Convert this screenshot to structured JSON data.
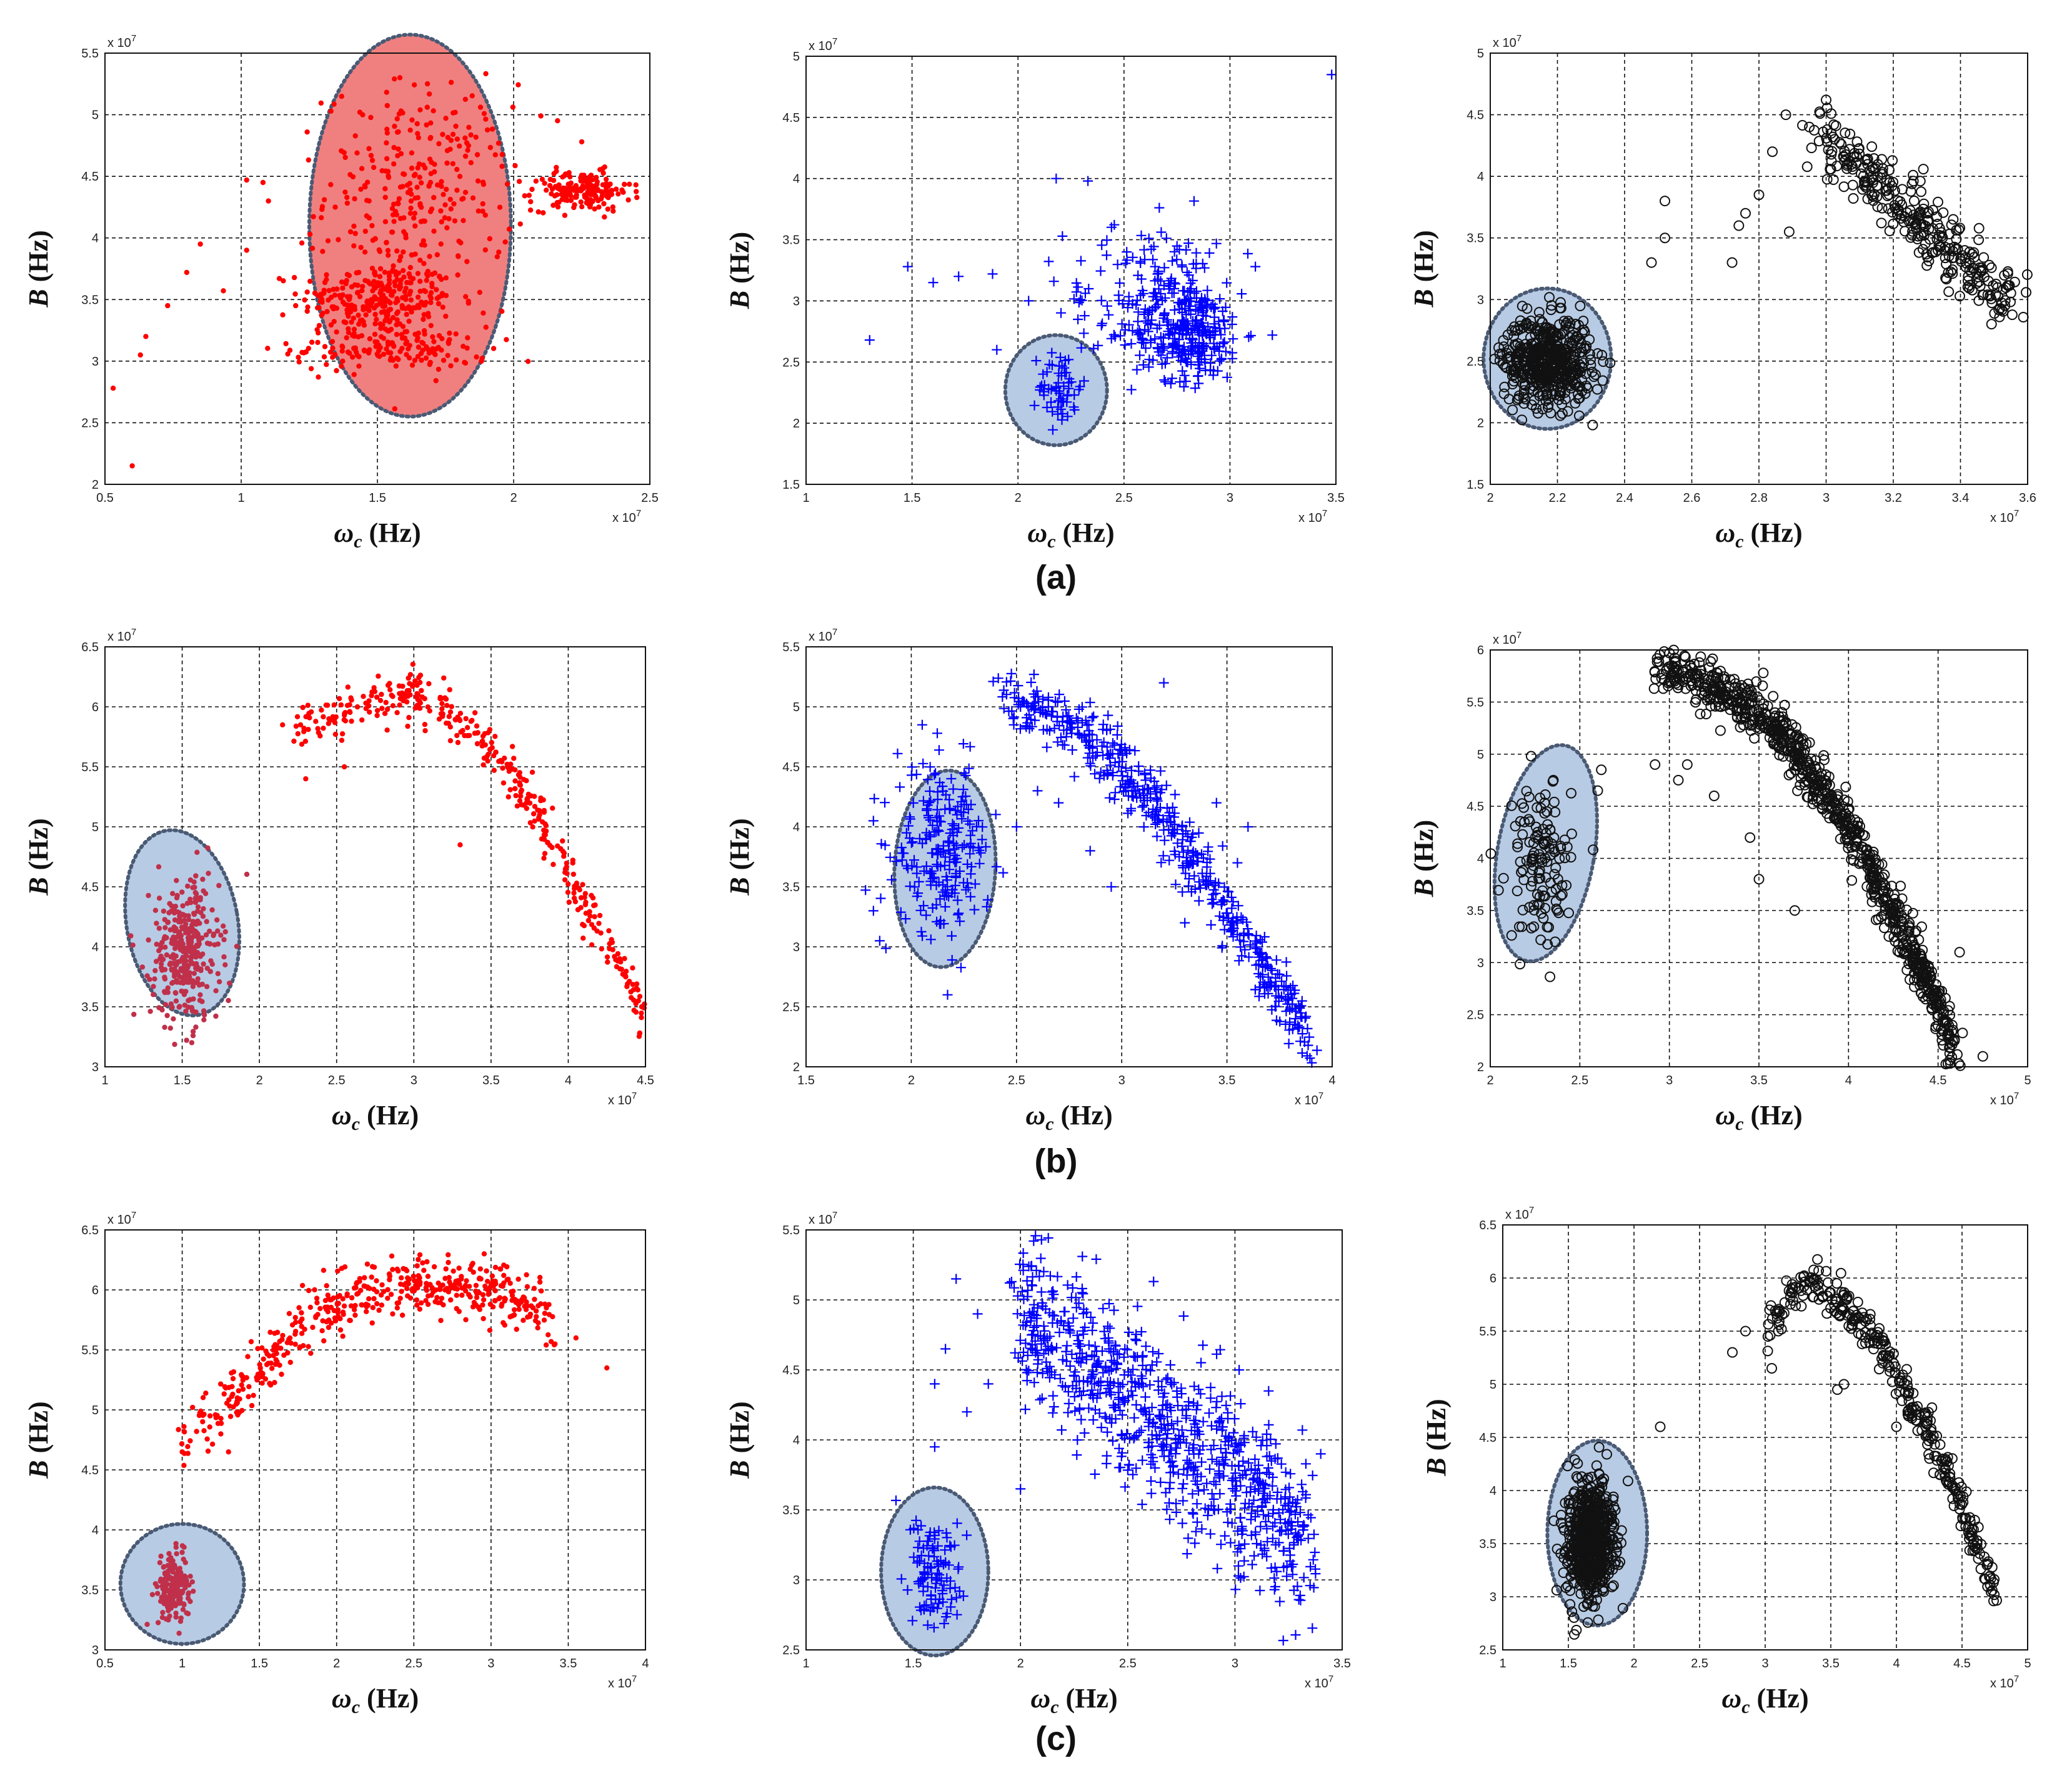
{
  "figure": {
    "row_labels": [
      "(a)",
      "(b)",
      "(c)"
    ],
    "x_multiplier": "x 10",
    "y_multiplier": "x 10",
    "exponent": "7",
    "x_axis_label": "ω",
    "x_axis_sub": "c",
    "x_axis_unit": " (Hz)",
    "y_axis_label": "B",
    "y_axis_unit": " (Hz)",
    "colors": {
      "red": "#ff0000",
      "blue": "#0000ff",
      "black": "#111111",
      "highlight_red": "#f08080",
      "highlight_blue": "#b8cbe4",
      "ellipse_border": "#4a5a74"
    }
  },
  "chart_data": [
    {
      "id": "a1",
      "type": "scatter",
      "marker": "dot",
      "color": "#ff0000",
      "xlim": [
        0.5,
        2.5
      ],
      "ylim": [
        2,
        5.5
      ],
      "xticks": [
        "0.5",
        "1",
        "1.5",
        "2",
        "2.5"
      ],
      "yticks": [
        "2",
        "2.5",
        "3",
        "3.5",
        "4",
        "4.5",
        "5",
        "5.5"
      ],
      "xlabel": "ωc (Hz)",
      "ylabel": "B (Hz)",
      "highlight": {
        "cx": 1.62,
        "cy": 4.1,
        "rx": 0.37,
        "ry": 1.55,
        "color": "#f08080"
      },
      "clusters": [
        {
          "cx": 1.5,
          "cy": 3.5,
          "sx": 0.14,
          "sy": 0.15,
          "n": 260
        },
        {
          "cx": 1.55,
          "cy": 3.1,
          "sx": 0.18,
          "sy": 0.09,
          "n": 150
        },
        {
          "cx": 1.65,
          "cy": 4.35,
          "sx": 0.17,
          "sy": 0.45,
          "n": 300
        },
        {
          "cx": 2.25,
          "cy": 4.38,
          "sx": 0.09,
          "sy": 0.08,
          "n": 170
        }
      ],
      "points": [
        [
          0.53,
          2.78
        ],
        [
          0.6,
          2.15
        ],
        [
          0.63,
          3.05
        ],
        [
          0.65,
          3.2
        ],
        [
          0.73,
          3.45
        ],
        [
          0.8,
          3.72
        ],
        [
          0.85,
          3.95
        ],
        [
          1.02,
          4.47
        ],
        [
          1.02,
          3.9
        ],
        [
          1.08,
          4.45
        ],
        [
          1.1,
          4.3
        ],
        [
          1.2,
          3.45
        ],
        [
          2.1,
          4.99
        ],
        [
          2.25,
          4.78
        ]
      ]
    },
    {
      "id": "a2",
      "type": "scatter",
      "marker": "plus",
      "color": "#0000ff",
      "xlim": [
        1,
        3.5
      ],
      "ylim": [
        1.5,
        5
      ],
      "xticks": [
        "1",
        "1.5",
        "2",
        "2.5",
        "3",
        "3.5"
      ],
      "yticks": [
        "1.5",
        "2",
        "2.5",
        "3",
        "3.5",
        "4",
        "4.5",
        "5"
      ],
      "xlabel": "ωc (Hz)",
      "ylabel": "B (Hz)",
      "highlight": {
        "cx": 2.18,
        "cy": 2.27,
        "rx": 0.24,
        "ry": 0.45,
        "color": "#b8cbe4"
      },
      "clusters": [
        {
          "cx": 2.2,
          "cy": 2.3,
          "sx": 0.05,
          "sy": 0.16,
          "n": 60
        },
        {
          "cx": 2.8,
          "cy": 2.75,
          "sx": 0.13,
          "sy": 0.2,
          "n": 300
        },
        {
          "cx": 2.7,
          "cy": 3.3,
          "sx": 0.12,
          "sy": 0.2,
          "n": 70
        },
        {
          "cx": 2.4,
          "cy": 3.0,
          "sx": 0.18,
          "sy": 0.25,
          "n": 40
        }
      ],
      "points": [
        [
          1.3,
          2.68
        ],
        [
          1.48,
          3.28
        ],
        [
          1.6,
          3.15
        ],
        [
          1.72,
          3.2
        ],
        [
          1.88,
          3.22
        ],
        [
          1.9,
          2.6
        ],
        [
          2.05,
          3.0
        ],
        [
          2.18,
          4.0
        ],
        [
          2.33,
          3.98
        ],
        [
          3.48,
          4.85
        ],
        [
          3.2,
          2.72
        ],
        [
          3.12,
          3.28
        ]
      ]
    },
    {
      "id": "a3",
      "type": "scatter",
      "marker": "circle",
      "color": "#111111",
      "xlim": [
        2,
        3.6
      ],
      "ylim": [
        1.5,
        5
      ],
      "xticks": [
        "2",
        "2.2",
        "2.4",
        "2.6",
        "2.8",
        "3",
        "3.2",
        "3.4",
        "3.6"
      ],
      "yticks": [
        "1.5",
        "2",
        "2.5",
        "3",
        "3.5",
        "4",
        "4.5",
        "5"
      ],
      "xlabel": "ωc (Hz)",
      "ylabel": "B (Hz)",
      "highlight": {
        "cx": 2.17,
        "cy": 2.52,
        "rx": 0.19,
        "ry": 0.57,
        "color": "#b8cbe4"
      },
      "clusters": [
        {
          "cx": 2.17,
          "cy": 2.5,
          "sx": 0.065,
          "sy": 0.18,
          "n": 500
        }
      ],
      "band": {
        "x0": 2.98,
        "y0": 4.35,
        "x1": 3.55,
        "y1": 3.0,
        "spread": 0.13,
        "n": 300
      },
      "points": [
        [
          2.48,
          3.3
        ],
        [
          2.52,
          3.8
        ],
        [
          2.52,
          3.5
        ],
        [
          2.72,
          3.3
        ],
        [
          2.74,
          3.6
        ],
        [
          2.76,
          3.7
        ],
        [
          2.8,
          3.85
        ],
        [
          2.84,
          4.2
        ],
        [
          2.88,
          4.5
        ],
        [
          2.95,
          4.4
        ],
        [
          3.0,
          4.62
        ],
        [
          2.89,
          3.55
        ]
      ]
    },
    {
      "id": "b1",
      "type": "scatter",
      "marker": "dot",
      "color": "#ff0000",
      "xlim": [
        1,
        4.5
      ],
      "ylim": [
        3,
        6.5
      ],
      "xticks": [
        "1",
        "1.5",
        "2",
        "2.5",
        "3",
        "3.5",
        "4",
        "4.5"
      ],
      "yticks": [
        "3",
        "3.5",
        "4",
        "4.5",
        "5",
        "5.5",
        "6",
        "6.5"
      ],
      "xlabel": "ωc (Hz)",
      "ylabel": "B (Hz)",
      "highlight": {
        "cx": 1.5,
        "cy": 4.2,
        "rx": 0.36,
        "ry": 0.78,
        "angle": -10,
        "color": "#b8cbe4",
        "point_color": "#c0304a"
      },
      "clusters": [
        {
          "cx": 1.52,
          "cy": 3.95,
          "sx": 0.11,
          "sy": 0.3,
          "n": 350,
          "color": "#c0304a"
        }
      ],
      "curve": {
        "x": [
          2.2,
          2.6,
          3.0,
          3.2,
          3.5,
          3.8,
          4.0,
          4.2,
          4.5
        ],
        "y": [
          5.82,
          6.0,
          6.08,
          5.95,
          5.65,
          5.1,
          4.6,
          4.15,
          3.42
        ],
        "spread": 0.1,
        "n": 380
      },
      "points": [
        [
          2.3,
          5.4
        ],
        [
          2.55,
          5.5
        ],
        [
          3.3,
          4.85
        ],
        [
          2.15,
          5.85
        ],
        [
          2.45,
          5.9
        ]
      ]
    },
    {
      "id": "b2",
      "type": "scatter",
      "marker": "plus",
      "color": "#0000ff",
      "xlim": [
        1.5,
        4
      ],
      "ylim": [
        2,
        5.5
      ],
      "xticks": [
        "1.5",
        "2",
        "2.5",
        "3",
        "3.5",
        "4"
      ],
      "yticks": [
        "2",
        "2.5",
        "3",
        "3.5",
        "4",
        "4.5",
        "5",
        "5.5"
      ],
      "xlabel": "ωc (Hz)",
      "ylabel": "B (Hz)",
      "highlight": {
        "cx": 2.16,
        "cy": 3.65,
        "rx": 0.24,
        "ry": 0.82,
        "angle": 3,
        "color": "#b8cbe4"
      },
      "clusters": [
        {
          "cx": 2.15,
          "cy": 3.8,
          "sx": 0.11,
          "sy": 0.35,
          "n": 230
        }
      ],
      "curve": {
        "x": [
          2.4,
          2.6,
          2.8,
          3.0,
          3.2,
          3.4,
          3.6,
          3.8,
          3.9
        ],
        "y": [
          5.1,
          5.0,
          4.8,
          4.5,
          4.1,
          3.6,
          3.0,
          2.5,
          2.1
        ],
        "spread": 0.13,
        "n": 520
      },
      "points": [
        [
          1.82,
          3.3
        ],
        [
          1.85,
          3.05
        ],
        [
          1.82,
          4.05
        ],
        [
          2.6,
          4.3
        ],
        [
          2.5,
          4.0
        ],
        [
          2.7,
          4.2
        ],
        [
          2.85,
          3.8
        ],
        [
          2.95,
          3.5
        ],
        [
          3.3,
          3.2
        ],
        [
          3.55,
          3.7
        ],
        [
          3.45,
          4.2
        ],
        [
          3.6,
          4.0
        ],
        [
          3.2,
          5.2
        ]
      ]
    },
    {
      "id": "b3",
      "type": "scatter",
      "marker": "circle",
      "color": "#111111",
      "xlim": [
        2,
        5
      ],
      "ylim": [
        2,
        6
      ],
      "xticks": [
        "2",
        "2.5",
        "3",
        "3.5",
        "4",
        "4.5",
        "5"
      ],
      "yticks": [
        "2",
        "2.5",
        "3",
        "3.5",
        "4",
        "4.5",
        "5",
        "5.5",
        "6"
      ],
      "xlabel": "ωc (Hz)",
      "ylabel": "B (Hz)",
      "highlight": {
        "cx": 2.31,
        "cy": 4.05,
        "rx": 0.27,
        "ry": 1.05,
        "angle": 10,
        "color": "#b8cbe4"
      },
      "clusters": [
        {
          "cx": 2.28,
          "cy": 3.95,
          "sx": 0.09,
          "sy": 0.38,
          "n": 130
        }
      ],
      "curve": {
        "x": [
          2.9,
          3.2,
          3.5,
          3.7,
          3.9,
          4.1,
          4.3,
          4.5,
          4.6
        ],
        "y": [
          5.8,
          5.7,
          5.4,
          5.05,
          4.55,
          4.0,
          3.3,
          2.6,
          2.15
        ],
        "spread": 0.12,
        "n": 850
      },
      "points": [
        [
          2.62,
          4.85
        ],
        [
          2.6,
          4.65
        ],
        [
          2.92,
          4.9
        ],
        [
          3.05,
          4.75
        ],
        [
          3.1,
          4.9
        ],
        [
          3.25,
          4.6
        ],
        [
          3.45,
          4.2
        ],
        [
          3.5,
          3.8
        ],
        [
          3.7,
          3.5
        ],
        [
          4.4,
          3.0
        ],
        [
          4.75,
          2.1
        ],
        [
          4.62,
          3.1
        ]
      ]
    },
    {
      "id": "c1",
      "type": "scatter",
      "marker": "dot",
      "color": "#ff0000",
      "xlim": [
        0.5,
        4
      ],
      "ylim": [
        3,
        6.5
      ],
      "xticks": [
        "0.5",
        "1",
        "1.5",
        "2",
        "2.5",
        "3",
        "3.5",
        "4"
      ],
      "yticks": [
        "3",
        "3.5",
        "4",
        "4.5",
        "5",
        "5.5",
        "6",
        "6.5"
      ],
      "xlabel": "ωc (Hz)",
      "ylabel": "B (Hz)",
      "highlight": {
        "cx": 1.0,
        "cy": 3.55,
        "rx": 0.4,
        "ry": 0.5,
        "color": "#b8cbe4",
        "point_color": "#c0304a"
      },
      "clusters": [
        {
          "cx": 0.95,
          "cy": 3.5,
          "sx": 0.05,
          "sy": 0.13,
          "n": 180,
          "color": "#c0304a"
        }
      ],
      "curve": {
        "x": [
          1.0,
          1.3,
          1.6,
          1.8,
          2.1,
          2.5,
          2.9,
          3.2,
          3.4
        ],
        "y": [
          4.7,
          5.1,
          5.45,
          5.75,
          5.95,
          6.08,
          6.0,
          5.9,
          5.75
        ],
        "spread": 0.12,
        "n": 480
      },
      "points": [
        [
          1.0,
          4.65
        ],
        [
          1.18,
          4.95
        ],
        [
          1.3,
          4.65
        ],
        [
          1.25,
          4.8
        ],
        [
          3.75,
          5.35
        ],
        [
          3.55,
          5.6
        ]
      ]
    },
    {
      "id": "c2",
      "type": "scatter",
      "marker": "plus",
      "color": "#0000ff",
      "xlim": [
        1,
        3.5
      ],
      "ylim": [
        2.5,
        5.5
      ],
      "xticks": [
        "1",
        "1.5",
        "2",
        "2.5",
        "3",
        "3.5"
      ],
      "yticks": [
        "2.5",
        "3",
        "3.5",
        "4",
        "4.5",
        "5",
        "5.5"
      ],
      "xlabel": "ωc (Hz)",
      "ylabel": "B (Hz)",
      "highlight": {
        "cx": 1.6,
        "cy": 3.06,
        "rx": 0.25,
        "ry": 0.6,
        "color": "#b8cbe4"
      },
      "clusters": [
        {
          "cx": 1.6,
          "cy": 3.1,
          "sx": 0.07,
          "sy": 0.2,
          "n": 110
        }
      ],
      "band": {
        "x0": 2.0,
        "y0": 4.95,
        "x1": 3.35,
        "y1": 3.25,
        "spread": 0.3,
        "n": 820
      },
      "points": [
        [
          1.7,
          5.15
        ],
        [
          1.8,
          4.9
        ],
        [
          1.65,
          4.65
        ],
        [
          1.85,
          4.4
        ],
        [
          1.75,
          4.2
        ],
        [
          1.6,
          3.95
        ],
        [
          1.6,
          4.4
        ],
        [
          2.0,
          3.65
        ],
        [
          3.4,
          3.9
        ]
      ]
    },
    {
      "id": "c3",
      "type": "scatter",
      "marker": "circle",
      "color": "#111111",
      "xlim": [
        1,
        5
      ],
      "ylim": [
        2.5,
        6.5
      ],
      "xticks": [
        "1",
        "1.5",
        "2",
        "2.5",
        "3",
        "3.5",
        "4",
        "4.5",
        "5"
      ],
      "yticks": [
        "2.5",
        "3",
        "3.5",
        "4",
        "4.5",
        "5",
        "5.5",
        "6",
        "6.5"
      ],
      "xlabel": "ωc (Hz)",
      "ylabel": "B (Hz)",
      "highlight": {
        "cx": 1.72,
        "cy": 3.6,
        "rx": 0.38,
        "ry": 0.87,
        "color": "#b8cbe4"
      },
      "clusters": [
        {
          "cx": 1.67,
          "cy": 3.55,
          "sx": 0.09,
          "sy": 0.28,
          "n": 650
        }
      ],
      "curve": {
        "x": [
          3.0,
          3.2,
          3.4,
          3.6,
          3.8,
          4.0,
          4.2,
          4.4,
          4.6,
          4.75
        ],
        "y": [
          5.5,
          5.85,
          5.95,
          5.75,
          5.5,
          5.1,
          4.65,
          4.15,
          3.5,
          3.0
        ],
        "spread": 0.1,
        "n": 330
      },
      "points": [
        [
          2.2,
          4.6
        ],
        [
          2.75,
          5.3
        ],
        [
          2.85,
          5.5
        ],
        [
          3.05,
          5.15
        ],
        [
          3.1,
          5.5
        ],
        [
          3.6,
          5.0
        ],
        [
          3.55,
          4.95
        ],
        [
          4.0,
          4.6
        ]
      ]
    }
  ]
}
